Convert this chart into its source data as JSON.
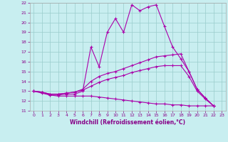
{
  "xlabel": "Windchill (Refroidissement éolien,°C)",
  "xlim": [
    -0.5,
    23.5
  ],
  "ylim": [
    11,
    22
  ],
  "xticks": [
    0,
    1,
    2,
    3,
    4,
    5,
    6,
    7,
    8,
    9,
    10,
    11,
    12,
    13,
    14,
    15,
    16,
    17,
    18,
    19,
    20,
    21,
    22,
    23
  ],
  "yticks": [
    11,
    12,
    13,
    14,
    15,
    16,
    17,
    18,
    19,
    20,
    21,
    22
  ],
  "bg_color": "#c8eef0",
  "line_color": "#aa00aa",
  "series": [
    [
      13.0,
      12.9,
      12.6,
      12.6,
      12.7,
      12.7,
      13.0,
      17.5,
      15.5,
      19.0,
      20.4,
      19.0,
      21.8,
      21.2,
      21.6,
      21.8,
      19.6,
      17.5,
      16.3,
      15.0,
      13.2,
      12.3,
      11.5
    ],
    [
      13.0,
      12.9,
      12.7,
      12.7,
      12.8,
      12.9,
      13.2,
      14.0,
      14.5,
      14.8,
      15.0,
      15.3,
      15.6,
      15.9,
      16.2,
      16.5,
      16.6,
      16.7,
      16.8,
      15.0,
      13.2,
      12.3,
      11.5
    ],
    [
      13.0,
      12.9,
      12.7,
      12.7,
      12.8,
      12.9,
      13.1,
      13.5,
      13.9,
      14.2,
      14.4,
      14.6,
      14.9,
      15.1,
      15.3,
      15.5,
      15.6,
      15.6,
      15.6,
      14.5,
      13.0,
      12.2,
      11.5
    ],
    [
      13.0,
      12.8,
      12.6,
      12.5,
      12.5,
      12.5,
      12.5,
      12.5,
      12.4,
      12.3,
      12.2,
      12.1,
      12.0,
      11.9,
      11.8,
      11.7,
      11.7,
      11.6,
      11.6,
      11.5,
      11.5,
      11.5,
      11.5
    ]
  ]
}
